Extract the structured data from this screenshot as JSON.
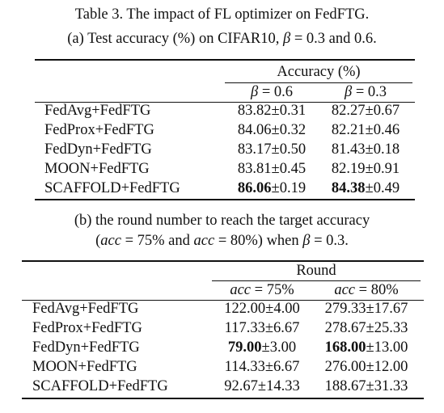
{
  "title": "Table 3. The impact of FL optimizer on FedFTG.",
  "table_a": {
    "caption_parts": [
      "(a) Test accuracy (%) on CIFAR10, ",
      "β",
      " = 0.3 and 0.6."
    ],
    "group_header": "Accuracy (%)",
    "col1_header": [
      "β",
      " = 0.6"
    ],
    "col2_header": [
      "β",
      " = 0.3"
    ],
    "rows": [
      {
        "name": "FedAvg+FedFTG",
        "v1_main": "83.82",
        "v1_pm": "±0.31",
        "v1_bold": false,
        "v2_main": "82.27",
        "v2_pm": "±0.67",
        "v2_bold": false
      },
      {
        "name": "FedProx+FedFTG",
        "v1_main": "84.06",
        "v1_pm": "±0.32",
        "v1_bold": false,
        "v2_main": "82.21",
        "v2_pm": "±0.46",
        "v2_bold": false
      },
      {
        "name": "FedDyn+FedFTG",
        "v1_main": "83.17",
        "v1_pm": "±0.50",
        "v1_bold": false,
        "v2_main": "81.43",
        "v2_pm": "±0.18",
        "v2_bold": false
      },
      {
        "name": "MOON+FedFTG",
        "v1_main": "83.81",
        "v1_pm": "±0.45",
        "v1_bold": false,
        "v2_main": "82.19",
        "v2_pm": "±0.91",
        "v2_bold": false
      },
      {
        "name": "SCAFFOLD+FedFTG",
        "v1_main": "86.06",
        "v1_pm": "±0.19",
        "v1_bold": true,
        "v2_main": "84.38",
        "v2_pm": "±0.49",
        "v2_bold": true
      }
    ]
  },
  "table_b": {
    "caption_line1": "(b) the round number to reach the target accuracy",
    "caption_line2_parts": [
      "(",
      "acc",
      " = 75% and ",
      "acc",
      " = 80%) when ",
      "β",
      " = 0.3."
    ],
    "group_header": "Round",
    "col1_header": [
      "acc",
      " = 75%"
    ],
    "col2_header": [
      "acc",
      " = 80%"
    ],
    "rows": [
      {
        "name": "FedAvg+FedFTG",
        "v1_main": "122.00",
        "v1_pm": "±4.00",
        "v1_bold": false,
        "v2_main": "279.33",
        "v2_pm": "±17.67",
        "v2_bold": false
      },
      {
        "name": "FedProx+FedFTG",
        "v1_main": "117.33",
        "v1_pm": "±6.67",
        "v1_bold": false,
        "v2_main": "278.67",
        "v2_pm": "±25.33",
        "v2_bold": false
      },
      {
        "name": "FedDyn+FedFTG",
        "v1_main": "79.00",
        "v1_pm": "±3.00",
        "v1_bold": true,
        "v2_main": "168.00",
        "v2_pm": "±13.00",
        "v2_bold": true
      },
      {
        "name": "MOON+FedFTG",
        "v1_main": "114.33",
        "v1_pm": "±6.67",
        "v1_bold": false,
        "v2_main": "276.00",
        "v2_pm": "±12.00",
        "v2_bold": false
      },
      {
        "name": "SCAFFOLD+FedFTG",
        "v1_main": "92.67",
        "v1_pm": "±14.33",
        "v1_bold": false,
        "v2_main": "188.67",
        "v2_pm": "±31.33",
        "v2_bold": false
      }
    ]
  }
}
